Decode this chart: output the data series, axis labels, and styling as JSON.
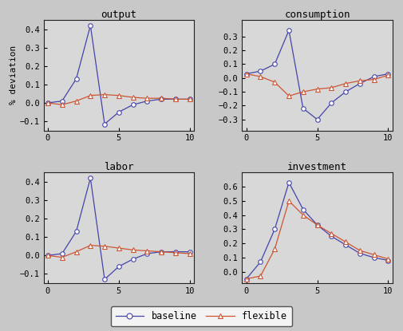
{
  "output": {
    "baseline": [
      0.0,
      0.01,
      0.13,
      0.42,
      -0.115,
      -0.05,
      -0.01,
      0.01,
      0.02,
      0.02,
      0.02
    ],
    "flexible": [
      0.0,
      -0.01,
      0.01,
      0.04,
      0.045,
      0.04,
      0.03,
      0.025,
      0.025,
      0.02,
      0.02
    ],
    "ylim": [
      -0.15,
      0.45
    ],
    "yticks": [
      -0.1,
      0.0,
      0.1,
      0.2,
      0.3,
      0.4
    ],
    "title": "output"
  },
  "consumption": {
    "baseline": [
      0.03,
      0.05,
      0.1,
      0.345,
      -0.22,
      -0.3,
      -0.18,
      -0.1,
      -0.04,
      0.01,
      0.03
    ],
    "flexible": [
      0.03,
      0.01,
      -0.03,
      -0.13,
      -0.1,
      -0.08,
      -0.07,
      -0.04,
      -0.02,
      -0.01,
      0.02
    ],
    "ylim": [
      -0.38,
      0.42
    ],
    "yticks": [
      -0.3,
      -0.2,
      -0.1,
      0.0,
      0.1,
      0.2,
      0.3
    ],
    "title": "consumption"
  },
  "labor": {
    "baseline": [
      0.0,
      0.01,
      0.13,
      0.42,
      -0.13,
      -0.06,
      -0.02,
      0.01,
      0.02,
      0.02,
      0.02
    ],
    "flexible": [
      0.0,
      -0.01,
      0.02,
      0.055,
      0.05,
      0.04,
      0.03,
      0.025,
      0.02,
      0.015,
      0.01
    ],
    "ylim": [
      -0.15,
      0.45
    ],
    "yticks": [
      -0.1,
      0.0,
      0.1,
      0.2,
      0.3,
      0.4
    ],
    "title": "labor"
  },
  "investment": {
    "baseline": [
      -0.05,
      0.07,
      0.3,
      0.63,
      0.44,
      0.33,
      0.25,
      0.19,
      0.13,
      0.1,
      0.08
    ],
    "flexible": [
      -0.05,
      -0.03,
      0.16,
      0.5,
      0.4,
      0.33,
      0.27,
      0.21,
      0.15,
      0.12,
      0.09
    ],
    "ylim": [
      -0.08,
      0.7
    ],
    "yticks": [
      0.0,
      0.1,
      0.2,
      0.3,
      0.4,
      0.5,
      0.6
    ],
    "title": "investment"
  },
  "x": [
    0,
    1,
    2,
    3,
    4,
    5,
    6,
    7,
    8,
    9,
    10
  ],
  "xticks": [
    0,
    5,
    10
  ],
  "baseline_color": "#4444aa",
  "flexible_color": "#cc5533",
  "ylabel": "% deviation",
  "legend_baseline": "baseline",
  "legend_flexible": "flexible",
  "figsize": [
    5.05,
    4.15
  ],
  "dpi": 100,
  "bg_color": "#d8d8d8"
}
